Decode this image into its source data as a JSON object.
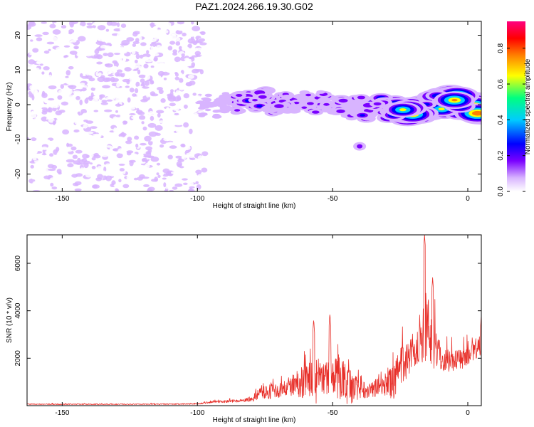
{
  "figure_title": "PAZ1.2024.266.19.30.G02",
  "chart_data": [
    {
      "type": "heatmap",
      "xlabel": "Height of straight line (km)",
      "ylabel": "Frequency (Hz)",
      "xlim": [
        -163,
        5
      ],
      "ylim": [
        -25,
        24
      ],
      "xticks": [
        -150,
        -100,
        -50,
        0
      ],
      "yticks": [
        -20,
        -10,
        0,
        10,
        20
      ],
      "xticklabels": [
        "-150",
        "-100",
        "-50",
        "0"
      ],
      "yticklabels": [
        "-20",
        "-10",
        "0",
        "10",
        "20"
      ],
      "colorbar": {
        "label": "Normalized spectral amplitude",
        "range": [
          0,
          0.95
        ],
        "ticks": [
          0.0,
          0.2,
          0.4,
          0.6,
          0.8
        ],
        "ticklabels": [
          "0.0",
          "0.2",
          "0.4",
          "0.6",
          "0.8"
        ],
        "colormap": [
          "#ffffff",
          "#d8b4ff",
          "#7a00ff",
          "#0000ff",
          "#00ccff",
          "#00ff80",
          "#ffff00",
          "#ff8000",
          "#ff0000",
          "#ff0080"
        ]
      },
      "noise_region_x": [
        -163,
        -97
      ],
      "signal_track": {
        "x": [
          -100,
          -90,
          -80,
          -70,
          -60,
          -50,
          -40,
          -30,
          -20,
          -10,
          0,
          5
        ],
        "frequency": [
          -1,
          0,
          2,
          0,
          1,
          0,
          -1,
          -1,
          -2,
          1,
          0,
          -1
        ],
        "peak_amplitude": [
          0.1,
          0.2,
          0.35,
          0.3,
          0.25,
          0.25,
          0.3,
          0.45,
          0.75,
          0.6,
          0.85,
          0.8
        ]
      },
      "isolated_blob": {
        "x": -40,
        "frequency": -12,
        "amplitude": 0.2
      }
    },
    {
      "type": "line",
      "xlabel": "Height of straight line (km)",
      "ylabel": "SNR (10 * v/v)",
      "xlim": [
        -163,
        5
      ],
      "ylim": [
        0,
        7200
      ],
      "xticks": [
        -150,
        -100,
        -50,
        0
      ],
      "yticks": [
        2000,
        4000,
        6000
      ],
      "xticklabels": [
        "-150",
        "-100",
        "-50",
        "0"
      ],
      "yticklabels": [
        "2000",
        "4000",
        "6000"
      ],
      "line_color": "#e8302a",
      "envelope": {
        "x": [
          -163,
          -120,
          -100,
          -95,
          -85,
          -80,
          -76,
          -70,
          -65,
          -60,
          -56,
          -54,
          -50,
          -48,
          -44,
          -40,
          -35,
          -30,
          -27,
          -25,
          -20,
          -17,
          -15,
          -12,
          -10,
          -6,
          -3,
          0,
          3,
          5
        ],
        "base": [
          60,
          60,
          70,
          150,
          200,
          250,
          600,
          600,
          850,
          1050,
          1050,
          1200,
          1100,
          1300,
          800,
          700,
          700,
          900,
          1000,
          1600,
          2300,
          2800,
          3200,
          2500,
          2000,
          1900,
          2000,
          2000,
          2300,
          2600
        ],
        "amp": [
          40,
          40,
          50,
          80,
          120,
          200,
          700,
          600,
          900,
          1500,
          2000,
          1400,
          1400,
          2000,
          1600,
          800,
          700,
          1000,
          1600,
          1800,
          1300,
          2000,
          3600,
          2000,
          1200,
          900,
          900,
          800,
          800,
          1000
        ]
      },
      "peaks": [
        {
          "x": -57,
          "y": 3650
        },
        {
          "x": -51,
          "y": 3900
        },
        {
          "x": -16,
          "y": 7200
        },
        {
          "x": -13,
          "y": 5400
        },
        {
          "x": 5,
          "y": 3800
        }
      ]
    }
  ]
}
